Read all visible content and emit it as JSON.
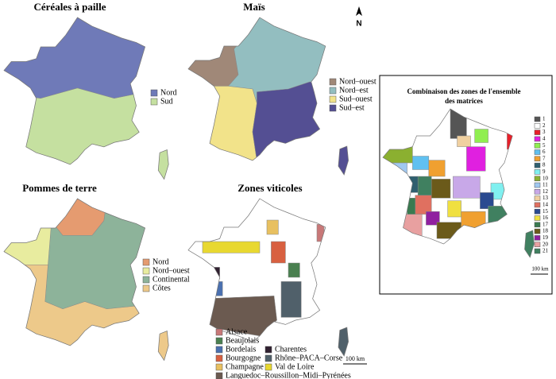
{
  "north": "N",
  "maps": [
    {
      "title": "Céréales à paille",
      "legend": [
        {
          "name": "Nord",
          "color": "#6f7ab8"
        },
        {
          "name": "Sud",
          "color": "#c5e0a0"
        }
      ]
    },
    {
      "title": "Maïs",
      "legend": [
        {
          "name": "Nord–ouest",
          "color": "#a08878"
        },
        {
          "name": "Nord–est",
          "color": "#93bec0"
        },
        {
          "name": "Sud–ouest",
          "color": "#f2e38a"
        },
        {
          "name": "Sud–est",
          "color": "#544f93"
        }
      ]
    },
    {
      "title": "Pommes de terre",
      "legend": [
        {
          "name": "Nord",
          "color": "#e59b70"
        },
        {
          "name": "Nord–ouest",
          "color": "#e8ec9f"
        },
        {
          "name": "Continental",
          "color": "#8db39a"
        },
        {
          "name": "Côtes",
          "color": "#edc98a"
        }
      ]
    },
    {
      "title": "Zones viticoles",
      "legend": [
        {
          "name": "Alsace",
          "color": "#c87878"
        },
        {
          "name": "Beaujolais",
          "color": "#4a8050"
        },
        {
          "name": "Bordelais",
          "color": "#4a70b0"
        },
        {
          "name": "Bourgogne",
          "color": "#d86040"
        },
        {
          "name": "Champagne",
          "color": "#e8c060"
        },
        {
          "name": "Languedoc–Roussillon–Midi–Pyrénées",
          "color": "#6b5a50"
        },
        {
          "name": "Charentes",
          "color": "#302030"
        },
        {
          "name": "Rhône–PACA–Corse",
          "color": "#50606a"
        },
        {
          "name": "Val de Loire",
          "color": "#e8d830"
        }
      ],
      "scale": "100 km"
    }
  ],
  "combination": {
    "title_lines": [
      "Combinaison des zones de l'ensemble",
      "des matrices"
    ],
    "legend": [
      {
        "label": "1",
        "color": "#555555"
      },
      {
        "label": "2",
        "color": "#ffffff"
      },
      {
        "label": "3",
        "color": "#e8202a"
      },
      {
        "label": "4",
        "color": "#e020e0"
      },
      {
        "label": "5",
        "color": "#90ee50"
      },
      {
        "label": "6",
        "color": "#60c0f0"
      },
      {
        "label": "7",
        "color": "#f0a030"
      },
      {
        "label": "8",
        "color": "#2f5f6f"
      },
      {
        "label": "9",
        "color": "#80f0f0"
      },
      {
        "label": "10",
        "color": "#8bb030"
      },
      {
        "label": "11",
        "color": "#a0c8f0"
      },
      {
        "label": "12",
        "color": "#c8a8e8"
      },
      {
        "label": "13",
        "color": "#f0d0a0"
      },
      {
        "label": "14",
        "color": "#e07060"
      },
      {
        "label": "15",
        "color": "#2a4a90"
      },
      {
        "label": "16",
        "color": "#f0e040"
      },
      {
        "label": "17",
        "color": "#3a7a50"
      },
      {
        "label": "18",
        "color": "#6b5a1a"
      },
      {
        "label": "19",
        "color": "#9020a0"
      },
      {
        "label": "20",
        "color": "#e8a0a0"
      },
      {
        "label": "21",
        "color": "#408060"
      }
    ],
    "scale": "100 km"
  }
}
